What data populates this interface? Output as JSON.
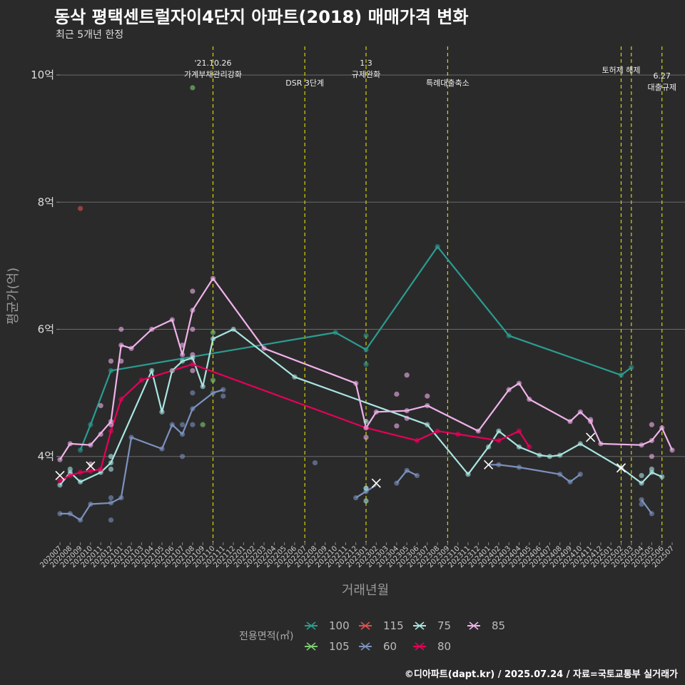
{
  "title": "동삭 평택센트럴자이4단지 아파트(2018) 매매가격 변화",
  "subtitle": "최근 5개년 한정",
  "caption": "©디아파트(dapt.kr) / 2025.07.24 / 자료=국토교통부 실거래가",
  "chart_data": {
    "type": "line",
    "xlabel": "거래년월",
    "ylabel": "평균가(억)",
    "ylim": [
      2.65,
      10.45
    ],
    "yticks": [
      {
        "v": 4,
        "label": "4억"
      },
      {
        "v": 6,
        "label": "6억"
      },
      {
        "v": 8,
        "label": "8억"
      },
      {
        "v": 10,
        "label": "10억"
      }
    ],
    "x_categories": [
      "202007",
      "202008",
      "202009",
      "202010",
      "202011",
      "202012",
      "202101",
      "202102",
      "202103",
      "202104",
      "202105",
      "202106",
      "202107",
      "202108",
      "202109",
      "202110",
      "202111",
      "202112",
      "202201",
      "202202",
      "202203",
      "202204",
      "202205",
      "202206",
      "202207",
      "202208",
      "202209",
      "202210",
      "202211",
      "202212",
      "202301",
      "202302",
      "202303",
      "202304",
      "202305",
      "202306",
      "202307",
      "202308",
      "202309",
      "202310",
      "202311",
      "202312",
      "202401",
      "202402",
      "202403",
      "202404",
      "202405",
      "202406",
      "202407",
      "202408",
      "202409",
      "202410",
      "202411",
      "202412",
      "202501",
      "202502",
      "202503",
      "202504",
      "202505",
      "202506",
      "202507"
    ],
    "events": [
      {
        "x": 15.0,
        "label": "'21.10.26 가계부채관리강화",
        "lines": [
          "'21.10.26",
          "가계부채관리강화"
        ],
        "row": "top"
      },
      {
        "x": 24.0,
        "label": "DSR 3단계",
        "lines": [
          "DSR 3단계"
        ],
        "row": "low"
      },
      {
        "x": 30.0,
        "label": "1.3 규제완화",
        "lines": [
          "1.3",
          "규제완화"
        ],
        "row": "top"
      },
      {
        "x": 38.0,
        "label": "특례대출축소",
        "lines": [
          "특례대출축소"
        ],
        "row": "low"
      },
      {
        "x": 55.0,
        "label": "토허제 해제",
        "lines": [
          "토허제 해제"
        ],
        "row": "mid"
      },
      {
        "x": 56.0,
        "label": "",
        "lines": [],
        "row": "none"
      },
      {
        "x": 59.0,
        "label": "6.27 대출규제",
        "lines": [
          "6.27",
          "대출규제"
        ],
        "row": "right"
      }
    ],
    "legend": {
      "title": "전용면적(㎡)",
      "position": "bottom"
    },
    "series": [
      {
        "name": "100",
        "color": "#2a9d8f",
        "line": [
          [
            2,
            4.1
          ],
          [
            3,
            4.5
          ],
          [
            5,
            5.35
          ],
          [
            27,
            5.95
          ],
          [
            30,
            5.68
          ],
          [
            37,
            7.3
          ],
          [
            44,
            5.9
          ],
          [
            55,
            5.28
          ],
          [
            56,
            5.4
          ]
        ],
        "points": [
          [
            2,
            4.1
          ],
          [
            3,
            4.5
          ],
          [
            5,
            5.35
          ],
          [
            27,
            5.95
          ],
          [
            30,
            5.9
          ],
          [
            30,
            5.45
          ],
          [
            30,
            5.68
          ],
          [
            37,
            7.3
          ],
          [
            44,
            5.9
          ],
          [
            55,
            5.28
          ],
          [
            56,
            5.4
          ]
        ],
        "x_marks": []
      },
      {
        "name": "105",
        "color": "#7ccf6f",
        "line": [],
        "points": [
          [
            13,
            9.8
          ],
          [
            15,
            5.95
          ],
          [
            14,
            4.5
          ],
          [
            15,
            5.2
          ]
        ],
        "x_marks": []
      },
      {
        "name": "115",
        "color": "#d9534f",
        "line": [],
        "points": [
          [
            2,
            7.9
          ]
        ],
        "x_marks": []
      },
      {
        "name": "60",
        "color": "#7b93bf",
        "line": [
          [
            0,
            3.1
          ],
          [
            1,
            3.1
          ],
          [
            2,
            3.0
          ],
          [
            3,
            3.25
          ],
          [
            5,
            3.27
          ],
          [
            6,
            3.35
          ],
          [
            7,
            4.3
          ],
          [
            10,
            4.12
          ],
          [
            11,
            4.5
          ],
          [
            12,
            4.35
          ],
          [
            13,
            4.75
          ],
          [
            15,
            5.0
          ],
          [
            16,
            5.05
          ]
        ],
        "line2": [
          [
            29,
            3.35
          ],
          [
            30,
            3.45
          ],
          [
            31,
            3.55
          ]
        ],
        "line3": [
          [
            33,
            3.58
          ],
          [
            34,
            3.78
          ],
          [
            35,
            3.7
          ]
        ],
        "line4": [
          [
            42,
            3.87
          ],
          [
            43,
            3.87
          ],
          [
            45,
            3.83
          ],
          [
            49,
            3.72
          ],
          [
            50,
            3.6
          ],
          [
            51,
            3.72
          ]
        ],
        "line5": [
          [
            57,
            3.32
          ],
          [
            58,
            3.1
          ]
        ],
        "points": [
          [
            0,
            3.1
          ],
          [
            1,
            3.1
          ],
          [
            2,
            3.0
          ],
          [
            3,
            3.25
          ],
          [
            5,
            3.27
          ],
          [
            5,
            3.35
          ],
          [
            5,
            3.0
          ],
          [
            6,
            3.35
          ],
          [
            7,
            4.3
          ],
          [
            10,
            4.12
          ],
          [
            11,
            4.5
          ],
          [
            12,
            4.35
          ],
          [
            12,
            4.5
          ],
          [
            12,
            4.0
          ],
          [
            13,
            4.75
          ],
          [
            13,
            5.0
          ],
          [
            13,
            4.5
          ],
          [
            15,
            5.0
          ],
          [
            16,
            5.05
          ],
          [
            16,
            4.95
          ],
          [
            25,
            3.9
          ],
          [
            29,
            3.35
          ],
          [
            30,
            3.45
          ],
          [
            30,
            3.5
          ],
          [
            33,
            3.58
          ],
          [
            34,
            3.78
          ],
          [
            35,
            3.7
          ],
          [
            43,
            3.87
          ],
          [
            45,
            3.83
          ],
          [
            49,
            3.72
          ],
          [
            50,
            3.6
          ],
          [
            51,
            3.72
          ],
          [
            57,
            3.32
          ],
          [
            57,
            3.25
          ],
          [
            58,
            3.1
          ]
        ],
        "x_marks": [
          [
            31,
            3.58
          ],
          [
            42,
            3.87
          ]
        ]
      },
      {
        "name": "75",
        "color": "#a8e6e2",
        "line": [
          [
            0,
            3.55
          ],
          [
            1,
            3.75
          ],
          [
            2,
            3.6
          ],
          [
            4,
            3.75
          ],
          [
            5,
            3.9
          ],
          [
            9,
            5.35
          ],
          [
            10,
            4.7
          ],
          [
            11,
            5.35
          ],
          [
            12,
            5.5
          ],
          [
            13,
            5.55
          ],
          [
            14,
            5.1
          ],
          [
            15,
            5.85
          ],
          [
            17,
            6.0
          ],
          [
            23,
            5.25
          ],
          [
            36,
            4.5
          ],
          [
            40,
            3.72
          ],
          [
            42,
            4.15
          ],
          [
            43,
            4.4
          ],
          [
            45,
            4.15
          ],
          [
            47,
            4.02
          ],
          [
            48,
            4.0
          ],
          [
            49,
            4.02
          ],
          [
            51,
            4.2
          ],
          [
            55,
            3.82
          ],
          [
            57,
            3.58
          ],
          [
            58,
            3.75
          ],
          [
            59,
            3.68
          ]
        ],
        "points": [
          [
            0,
            3.55
          ],
          [
            1,
            3.75
          ],
          [
            1,
            3.8
          ],
          [
            2,
            3.6
          ],
          [
            4,
            3.75
          ],
          [
            5,
            3.9
          ],
          [
            5,
            3.8
          ],
          [
            5,
            4.0
          ],
          [
            9,
            5.35
          ],
          [
            10,
            4.7
          ],
          [
            11,
            5.35
          ],
          [
            12,
            5.5
          ],
          [
            13,
            5.55
          ],
          [
            14,
            5.1
          ],
          [
            15,
            5.85
          ],
          [
            17,
            6.0
          ],
          [
            23,
            5.25
          ],
          [
            30,
            3.5
          ],
          [
            30,
            3.3
          ],
          [
            30,
            4.55
          ],
          [
            36,
            4.5
          ],
          [
            40,
            3.72
          ],
          [
            42,
            4.15
          ],
          [
            43,
            4.4
          ],
          [
            45,
            4.15
          ],
          [
            47,
            4.02
          ],
          [
            48,
            4.0
          ],
          [
            49,
            4.02
          ],
          [
            51,
            4.2
          ],
          [
            55,
            3.82
          ],
          [
            57,
            3.58
          ],
          [
            57,
            3.7
          ],
          [
            58,
            3.75
          ],
          [
            58,
            3.8
          ],
          [
            59,
            3.68
          ]
        ],
        "x_marks": [
          [
            55,
            3.82
          ]
        ]
      },
      {
        "name": "80",
        "color": "#e8005a",
        "line": [
          [
            0,
            3.62
          ],
          [
            1,
            3.7
          ],
          [
            2,
            3.75
          ],
          [
            3,
            3.77
          ],
          [
            4,
            3.8
          ],
          [
            5,
            4.4
          ],
          [
            6,
            4.9
          ],
          [
            8,
            5.2
          ],
          [
            13,
            5.45
          ],
          [
            30,
            4.45
          ],
          [
            35,
            4.25
          ],
          [
            37,
            4.4
          ],
          [
            39,
            4.35
          ],
          [
            43,
            4.25
          ],
          [
            45,
            4.4
          ],
          [
            46,
            4.15
          ]
        ],
        "points": [
          [
            0,
            3.62
          ],
          [
            1,
            3.7
          ],
          [
            2,
            3.75
          ],
          [
            3,
            3.77
          ],
          [
            4,
            3.8
          ],
          [
            5,
            4.4
          ],
          [
            6,
            4.9
          ],
          [
            8,
            5.2
          ],
          [
            13,
            5.45
          ],
          [
            30,
            4.45
          ],
          [
            35,
            4.25
          ],
          [
            37,
            4.4
          ],
          [
            39,
            4.35
          ],
          [
            43,
            4.25
          ],
          [
            45,
            4.4
          ],
          [
            46,
            4.15
          ]
        ],
        "x_marks": []
      },
      {
        "name": "85",
        "color": "#f0b3ea",
        "line": [
          [
            0,
            3.95
          ],
          [
            1,
            4.2
          ],
          [
            3,
            4.18
          ],
          [
            5,
            4.55
          ],
          [
            6,
            5.75
          ],
          [
            7,
            5.7
          ],
          [
            9,
            6.0
          ],
          [
            11,
            6.15
          ],
          [
            12,
            5.6
          ],
          [
            13,
            6.3
          ],
          [
            15,
            6.8
          ],
          [
            20,
            5.7
          ],
          [
            29,
            5.15
          ],
          [
            30,
            4.45
          ],
          [
            31,
            4.7
          ],
          [
            34,
            4.72
          ],
          [
            36,
            4.8
          ],
          [
            41,
            4.4
          ],
          [
            44,
            5.05
          ],
          [
            45,
            5.15
          ],
          [
            46,
            4.9
          ],
          [
            50,
            4.55
          ],
          [
            51,
            4.7
          ],
          [
            52,
            4.55
          ],
          [
            53,
            4.2
          ],
          [
            57,
            4.18
          ],
          [
            58,
            4.25
          ],
          [
            59,
            4.45
          ],
          [
            60,
            4.1
          ]
        ],
        "points": [
          [
            0,
            3.95
          ],
          [
            1,
            4.2
          ],
          [
            3,
            4.18
          ],
          [
            3,
            3.88
          ],
          [
            4,
            4.8
          ],
          [
            4,
            4.35
          ],
          [
            5,
            4.55
          ],
          [
            5,
            5.5
          ],
          [
            5,
            4.5
          ],
          [
            6,
            5.75
          ],
          [
            6,
            6.0
          ],
          [
            6,
            5.5
          ],
          [
            7,
            5.7
          ],
          [
            9,
            6.0
          ],
          [
            11,
            6.15
          ],
          [
            12,
            5.6
          ],
          [
            12,
            5.75
          ],
          [
            13,
            6.3
          ],
          [
            13,
            6.6
          ],
          [
            13,
            6.0
          ],
          [
            13,
            5.6
          ],
          [
            13,
            5.35
          ],
          [
            15,
            6.8
          ],
          [
            20,
            5.7
          ],
          [
            29,
            5.15
          ],
          [
            30,
            4.45
          ],
          [
            30,
            4.3
          ],
          [
            31,
            4.7
          ],
          [
            33,
            4.98
          ],
          [
            33,
            4.48
          ],
          [
            34,
            4.72
          ],
          [
            34,
            5.28
          ],
          [
            34,
            4.6
          ],
          [
            36,
            4.8
          ],
          [
            36,
            4.95
          ],
          [
            41,
            4.4
          ],
          [
            44,
            5.05
          ],
          [
            45,
            5.15
          ],
          [
            46,
            4.9
          ],
          [
            50,
            4.55
          ],
          [
            51,
            4.7
          ],
          [
            52,
            4.55
          ],
          [
            52,
            4.58
          ],
          [
            53,
            4.2
          ],
          [
            57,
            4.18
          ],
          [
            58,
            4.25
          ],
          [
            58,
            4.5
          ],
          [
            58,
            4.0
          ],
          [
            59,
            4.45
          ],
          [
            60,
            4.1
          ]
        ],
        "x_marks": [
          [
            52,
            4.3
          ]
        ]
      }
    ],
    "group_x_marks": [
      {
        "x": 0,
        "y": 3.7,
        "color": "#ffffff"
      },
      {
        "x": 3,
        "y": 3.85,
        "color": "#ffffff"
      }
    ]
  }
}
